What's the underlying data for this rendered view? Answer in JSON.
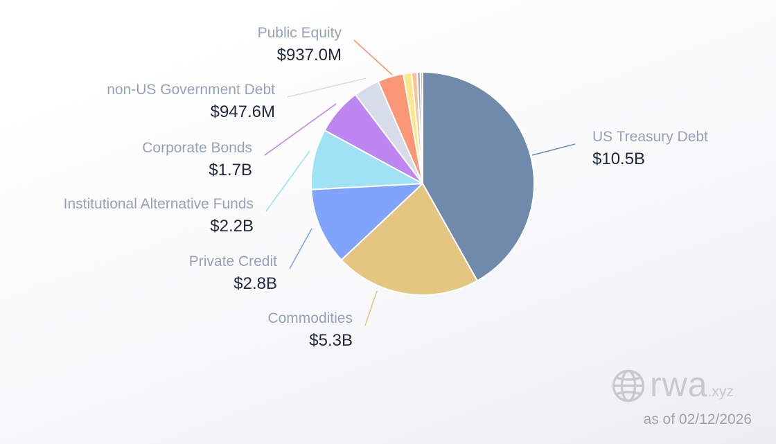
{
  "chart_data": {
    "type": "pie",
    "title": "",
    "unit": "USD",
    "slices": [
      {
        "label": "US Treasury Debt",
        "display_value": "$10.5B",
        "value": 10500,
        "color": "#6f8aab",
        "label_side": "right"
      },
      {
        "label": "Commodities",
        "display_value": "$5.3B",
        "value": 5300,
        "color": "#e4c680",
        "label_side": "left"
      },
      {
        "label": "Private Credit",
        "display_value": "$2.8B",
        "value": 2800,
        "color": "#81a4fb",
        "label_side": "left"
      },
      {
        "label": "Institutional Alternative Funds",
        "display_value": "$2.2B",
        "value": 2200,
        "color": "#9fe2f5",
        "label_side": "left"
      },
      {
        "label": "Corporate Bonds",
        "display_value": "$1.7B",
        "value": 1700,
        "color": "#bd86f0",
        "label_side": "left"
      },
      {
        "label": "non-US Government Debt",
        "display_value": "$947.6M",
        "value": 947.6,
        "color": "#d6dde8",
        "label_side": "left"
      },
      {
        "label": "Public Equity",
        "display_value": "$937.0M",
        "value": 937.0,
        "color": "#fb9677",
        "label_side": "left"
      },
      {
        "label": "",
        "display_value": "",
        "value": 300,
        "color": "#fde68a",
        "label_side": "none"
      },
      {
        "label": "",
        "display_value": "",
        "value": 200,
        "color": "#f9c295",
        "label_side": "none"
      },
      {
        "label": "",
        "display_value": "",
        "value": 120,
        "color": "#a7b4c6",
        "label_side": "none"
      },
      {
        "label": "",
        "display_value": "",
        "value": 80,
        "color": "#f3a6a0",
        "label_side": "none"
      }
    ],
    "start_angle_deg": 0,
    "direction": "clockwise",
    "legend": "none",
    "grid": false
  },
  "watermark": {
    "icon": "globe-icon",
    "brand": "rwa",
    "brand_suffix": ".xyz",
    "color": "#c7c9cd"
  },
  "as_of_text": "as of 02/12/2026"
}
